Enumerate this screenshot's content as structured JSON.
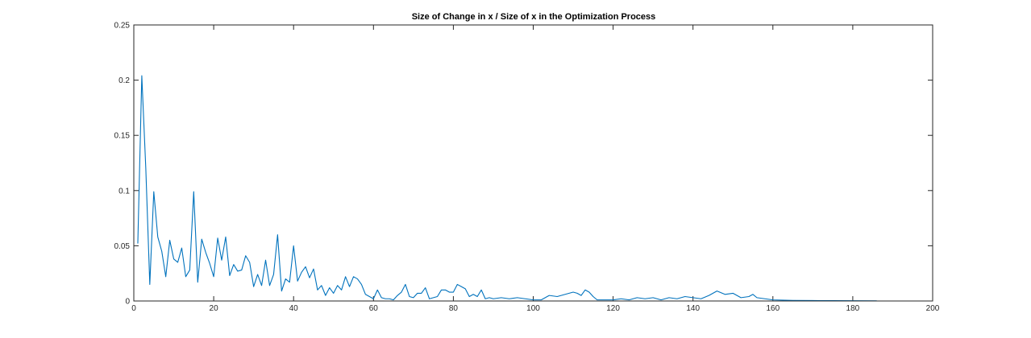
{
  "chart_data": {
    "type": "line",
    "title": "Size of Change in x / Size of x in the Optimization Process",
    "xlabel": "",
    "ylabel": "",
    "xlim": [
      0,
      200
    ],
    "ylim": [
      0,
      0.25
    ],
    "xticks": [
      0,
      20,
      40,
      60,
      80,
      100,
      120,
      140,
      160,
      180,
      200
    ],
    "xtick_labels": [
      "0",
      "20",
      "40",
      "60",
      "80",
      "100",
      "120",
      "140",
      "160",
      "180",
      "200"
    ],
    "yticks": [
      0,
      0.05,
      0.1,
      0.15,
      0.2,
      0.25
    ],
    "ytick_labels": [
      "0",
      "0.05",
      "0.1",
      "0.15",
      "0.2",
      "0.25"
    ],
    "grid": false,
    "legend": "none",
    "series": [
      {
        "color": "#0072BD",
        "x": [
          1,
          2,
          3,
          4,
          5,
          6,
          7,
          8,
          9,
          10,
          11,
          12,
          13,
          14,
          15,
          16,
          17,
          18,
          19,
          20,
          21,
          22,
          23,
          24,
          25,
          26,
          27,
          28,
          29,
          30,
          31,
          32,
          33,
          34,
          35,
          36,
          37,
          38,
          39,
          40,
          41,
          42,
          43,
          44,
          45,
          46,
          47,
          48,
          49,
          50,
          51,
          52,
          53,
          54,
          55,
          56,
          57,
          58,
          59,
          60,
          61,
          62,
          63,
          64,
          65,
          66,
          67,
          68,
          69,
          70,
          71,
          72,
          73,
          74,
          75,
          76,
          77,
          78,
          79,
          80,
          81,
          82,
          83,
          84,
          85,
          86,
          87,
          88,
          89,
          90,
          92,
          94,
          96,
          98,
          100,
          102,
          104,
          106,
          108,
          110,
          111,
          112,
          113,
          114,
          115,
          116,
          118,
          120,
          122,
          124,
          126,
          128,
          130,
          132,
          134,
          136,
          138,
          140,
          142,
          144,
          146,
          148,
          150,
          152,
          154,
          155,
          156,
          158,
          160,
          165,
          170,
          175,
          180,
          186
        ],
        "y": [
          0.052,
          0.204,
          0.12,
          0.015,
          0.099,
          0.058,
          0.045,
          0.022,
          0.055,
          0.038,
          0.035,
          0.048,
          0.022,
          0.028,
          0.099,
          0.017,
          0.056,
          0.044,
          0.034,
          0.022,
          0.057,
          0.037,
          0.058,
          0.023,
          0.033,
          0.027,
          0.028,
          0.041,
          0.035,
          0.013,
          0.024,
          0.014,
          0.037,
          0.014,
          0.024,
          0.06,
          0.009,
          0.02,
          0.017,
          0.05,
          0.018,
          0.026,
          0.031,
          0.021,
          0.029,
          0.01,
          0.014,
          0.005,
          0.012,
          0.007,
          0.014,
          0.01,
          0.022,
          0.013,
          0.022,
          0.02,
          0.015,
          0.006,
          0.004,
          0.002,
          0.01,
          0.003,
          0.002,
          0.002,
          0.001,
          0.005,
          0.008,
          0.015,
          0.004,
          0.003,
          0.007,
          0.007,
          0.012,
          0.002,
          0.003,
          0.004,
          0.01,
          0.01,
          0.008,
          0.008,
          0.015,
          0.013,
          0.011,
          0.004,
          0.006,
          0.004,
          0.01,
          0.002,
          0.003,
          0.002,
          0.003,
          0.002,
          0.003,
          0.002,
          0.001,
          0.001,
          0.005,
          0.004,
          0.006,
          0.008,
          0.007,
          0.005,
          0.01,
          0.008,
          0.004,
          0.001,
          0.001,
          0.001,
          0.002,
          0.001,
          0.003,
          0.002,
          0.003,
          0.001,
          0.003,
          0.002,
          0.004,
          0.003,
          0.002,
          0.005,
          0.009,
          0.006,
          0.007,
          0.003,
          0.004,
          0.006,
          0.003,
          0.002,
          0.001,
          0.0005,
          0.0004,
          0.0003,
          0.0002,
          0.0001
        ]
      }
    ]
  }
}
